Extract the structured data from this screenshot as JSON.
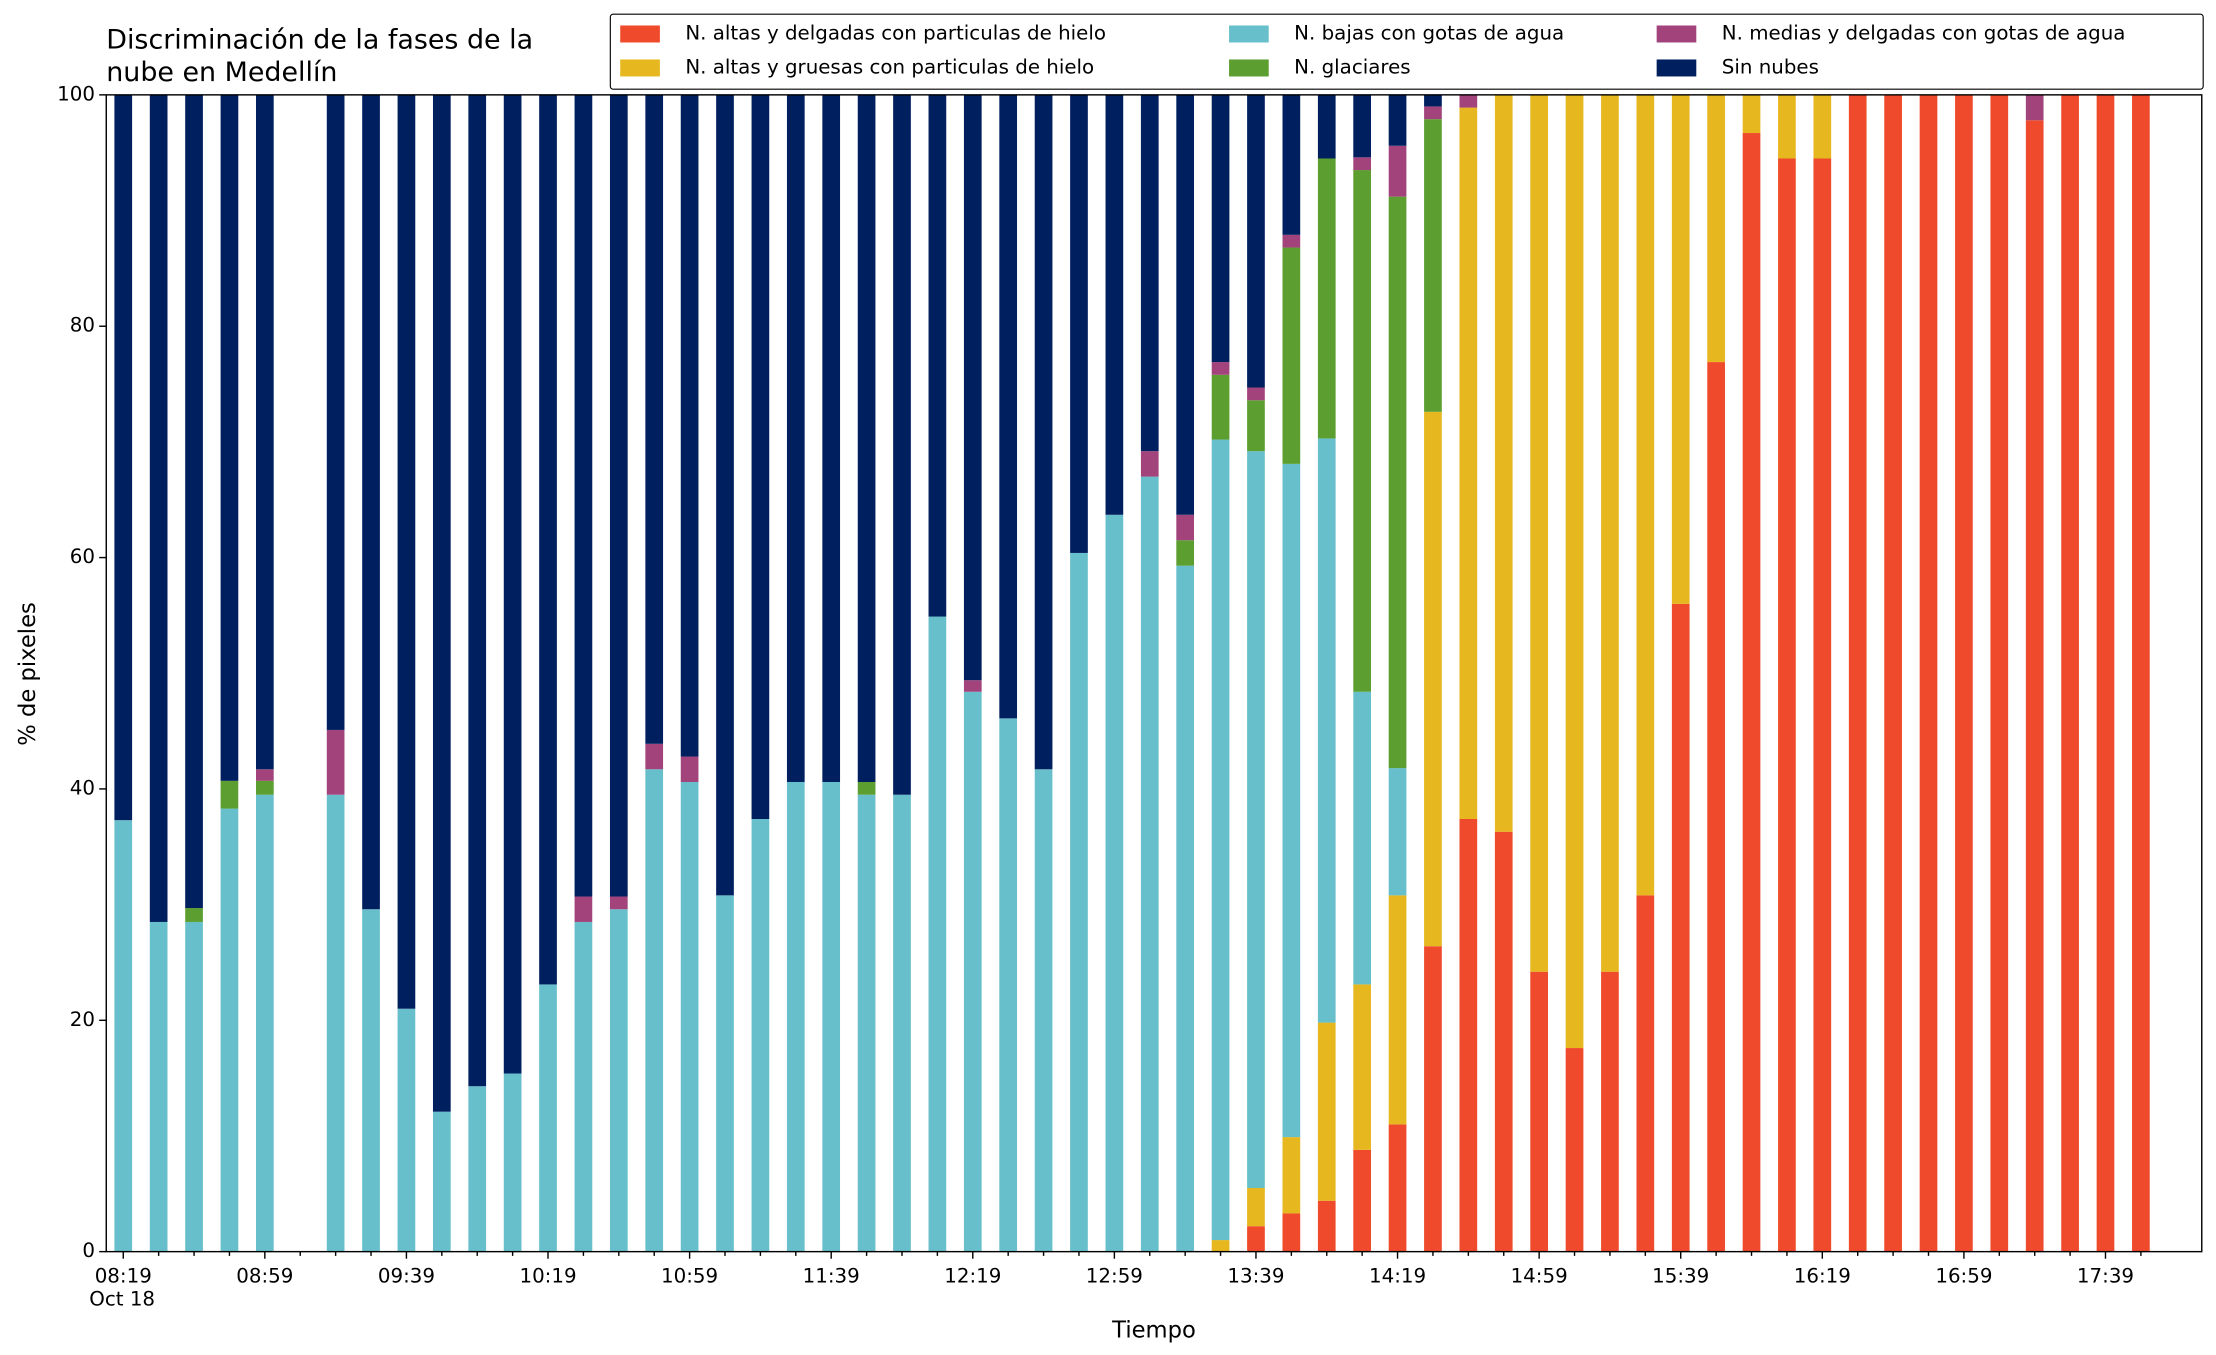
{
  "chart_data": {
    "type": "stacked_bar",
    "title": [
      "Discriminación de la fases de la",
      "nube en Medellín"
    ],
    "x_label": "Tiempo",
    "y_label": "% de pixeles",
    "date_label": "Oct 18",
    "categories": [
      "08:19",
      null,
      null,
      null,
      "08:59",
      null,
      null,
      null,
      "09:39",
      null,
      null,
      null,
      "10:19",
      null,
      null,
      null,
      "10:59",
      null,
      null,
      null,
      "11:39",
      null,
      null,
      null,
      "12:19",
      null,
      null,
      null,
      "12:59",
      null,
      null,
      null,
      "13:39",
      null,
      null,
      null,
      "14:19",
      null,
      null,
      null,
      "14:59",
      null,
      null,
      null,
      "15:39",
      null,
      null,
      null,
      "16:19",
      null,
      null,
      null,
      "16:59",
      null,
      null,
      null,
      "17:39",
      null
    ],
    "ylim": [
      0,
      100
    ],
    "yticks": [
      0,
      20,
      40,
      60,
      80,
      100
    ],
    "legend": "upper right",
    "series": [
      {
        "name": "N. altas y delgadas con particulas de hielo",
        "color": "#ef4a2b",
        "values": [
          0,
          0,
          0,
          0,
          0,
          null,
          0,
          0,
          0,
          0,
          0,
          0,
          0,
          0,
          0,
          0,
          0,
          0,
          0,
          0,
          0,
          0,
          0,
          0,
          0,
          0,
          0,
          0,
          0,
          0,
          0,
          0,
          2.2,
          3.3,
          4.4,
          8.8,
          11.0,
          26.4,
          37.4,
          36.3,
          24.2,
          17.6,
          24.2,
          30.8,
          56.0,
          76.9,
          96.7,
          94.5,
          94.5,
          100,
          100,
          100,
          100,
          100,
          97.8,
          100,
          100,
          100
        ]
      },
      {
        "name": "N. altas y gruesas con particulas de hielo",
        "color": "#e6b71e",
        "values": [
          0,
          0,
          0,
          0,
          0,
          null,
          0,
          0,
          0,
          0,
          0,
          0,
          0,
          0,
          0,
          0,
          0,
          0,
          0,
          0,
          0,
          0,
          0,
          0,
          0,
          0,
          0,
          0,
          0,
          0,
          0,
          1.0,
          3.3,
          6.6,
          15.4,
          14.3,
          19.8,
          46.2,
          61.5,
          63.7,
          75.8,
          82.4,
          75.8,
          69.2,
          44.0,
          23.1,
          3.3,
          5.5,
          5.5,
          0,
          0,
          0,
          0,
          0,
          0,
          0,
          0,
          0
        ]
      },
      {
        "name": "N. bajas con gotas de agua",
        "color": "#67bfcb",
        "values": [
          37.3,
          28.5,
          28.5,
          38.3,
          39.5,
          null,
          39.5,
          29.6,
          21.0,
          12.1,
          14.3,
          15.4,
          23.1,
          28.5,
          29.6,
          41.7,
          40.6,
          30.8,
          37.4,
          40.6,
          40.6,
          39.5,
          39.5,
          54.9,
          48.4,
          46.1,
          41.7,
          60.4,
          63.7,
          67.0,
          59.3,
          69.2,
          63.7,
          58.2,
          50.5,
          25.3,
          11.0,
          0,
          0,
          0,
          0,
          0,
          0,
          0,
          0,
          0,
          0,
          0,
          0,
          0,
          0,
          0,
          0,
          0,
          0,
          0,
          0,
          0
        ]
      },
      {
        "name": "N. glaciares",
        "color": "#5c9e2f",
        "values": [
          0,
          0,
          1.2,
          2.4,
          1.2,
          null,
          0,
          0,
          0,
          0,
          0,
          0,
          0,
          0,
          0,
          0,
          0,
          0,
          0,
          0,
          0,
          1.1,
          0,
          0,
          0,
          0,
          0,
          0,
          0,
          0,
          2.2,
          5.6,
          4.4,
          18.7,
          24.2,
          45.1,
          49.4,
          25.3,
          0,
          0,
          0,
          0,
          0,
          0,
          0,
          0,
          0,
          0,
          0,
          0,
          0,
          0,
          0,
          0,
          0,
          0,
          0,
          0
        ]
      },
      {
        "name": "N. medias y delgadas con gotas de agua",
        "color": "#a2447b",
        "values": [
          0,
          0,
          0,
          0,
          1.0,
          null,
          5.6,
          0,
          0,
          0,
          0,
          0,
          0,
          2.2,
          1.1,
          2.2,
          2.2,
          0,
          0,
          0,
          0,
          0,
          0,
          0,
          1.0,
          0,
          0,
          0,
          0,
          2.2,
          2.2,
          1.1,
          1.1,
          1.1,
          0,
          1.1,
          4.4,
          1.1,
          1.1,
          0,
          0,
          0,
          0,
          0,
          0,
          0,
          0,
          0,
          0,
          0,
          0,
          0,
          0,
          0,
          2.2,
          0,
          0,
          0
        ]
      },
      {
        "name": "Sin nubes",
        "color": "#001f5f",
        "values": [
          62.7,
          71.5,
          70.3,
          59.3,
          58.3,
          null,
          54.9,
          70.4,
          79.0,
          87.9,
          85.7,
          84.6,
          76.9,
          69.3,
          69.3,
          56.1,
          57.2,
          69.2,
          62.6,
          59.4,
          59.4,
          59.4,
          60.5,
          45.1,
          50.6,
          53.9,
          58.3,
          39.6,
          36.3,
          30.8,
          36.3,
          23.1,
          25.3,
          12.1,
          5.5,
          5.4,
          4.4,
          1.0,
          0,
          0,
          0,
          0,
          0,
          0,
          0,
          0,
          0,
          0,
          0,
          0,
          0,
          0,
          0,
          0,
          0,
          0,
          0,
          0
        ]
      }
    ]
  }
}
